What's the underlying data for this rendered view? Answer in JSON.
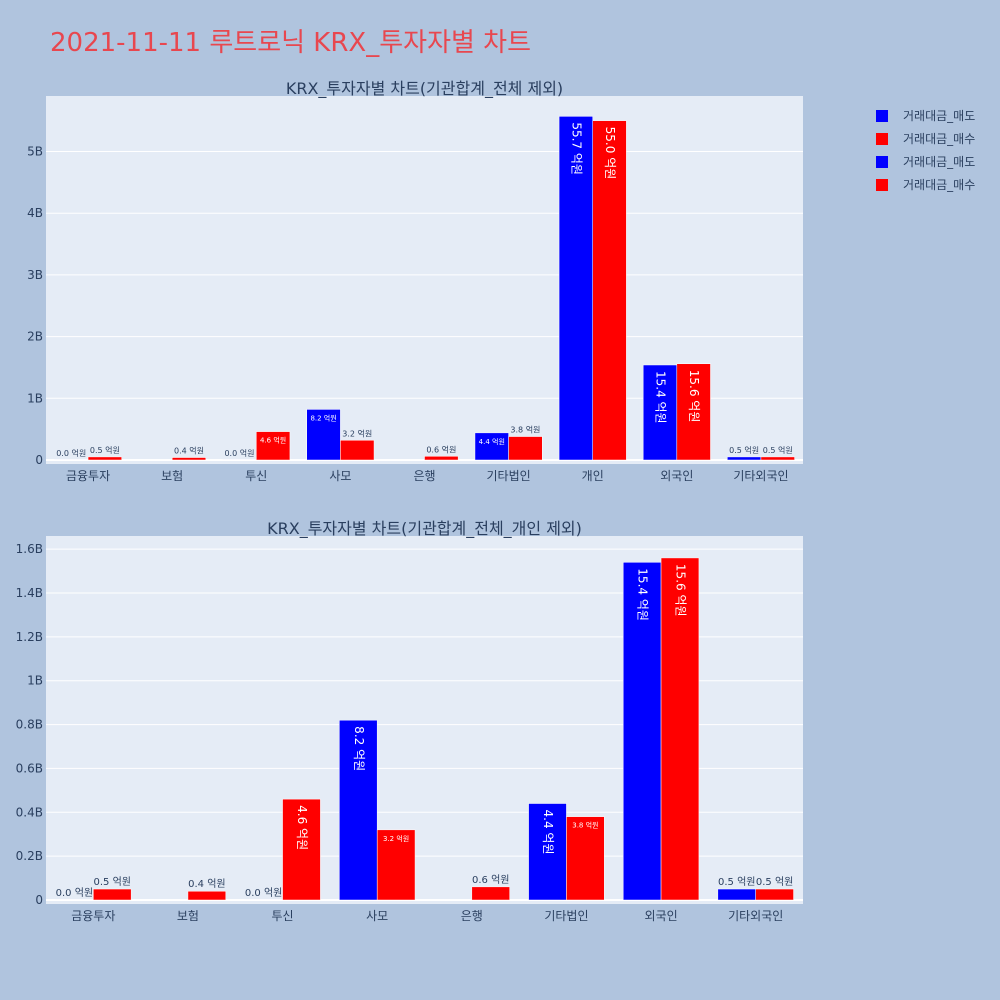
{
  "page": {
    "title": "2021-11-11 루트로닉 KRX_투자자별 차트"
  },
  "legend": {
    "items": [
      {
        "label": "거래대금_매도",
        "color": "#0000ff"
      },
      {
        "label": "거래대금_매수",
        "color": "#ff0000"
      },
      {
        "label": "거래대금_매도",
        "color": "#0000ff"
      },
      {
        "label": "거래대금_매수",
        "color": "#ff0000"
      }
    ]
  },
  "chart_data": [
    {
      "type": "bar",
      "title": "KRX_투자자별 차트(기관합계_전체 제외)",
      "categories": [
        "금융투자",
        "보험",
        "투신",
        "사모",
        "은행",
        "기타법인",
        "개인",
        "외국인",
        "기타외국인"
      ],
      "ylim": [
        0,
        5900000000
      ],
      "yticks": [
        0,
        1000000000,
        2000000000,
        3000000000,
        4000000000,
        5000000000
      ],
      "ytick_labels": [
        "0",
        "1B",
        "2B",
        "3B",
        "4B",
        "5B"
      ],
      "grid": true,
      "series": [
        {
          "name": "거래대금_매도",
          "color": "#0000ff",
          "values": [
            1000000,
            0,
            1000000,
            820000000,
            0,
            440000000,
            5570000000,
            1540000000,
            50000000
          ],
          "labels": [
            "0.0 억원",
            "",
            "0.0 억원",
            "8.2 억원",
            "",
            "4.4 억원",
            "55.7 억원",
            "15.4 억원",
            "0.5 억원"
          ]
        },
        {
          "name": "거래대금_매수",
          "color": "#ff0000",
          "values": [
            50000000,
            40000000,
            460000000,
            320000000,
            60000000,
            380000000,
            5500000000,
            1560000000,
            50000000
          ],
          "labels": [
            "0.5 억원",
            "0.4 억원",
            "4.6 억원",
            "3.2 억원",
            "0.6 억원",
            "3.8 억원",
            "55.0 억원",
            "15.6 억원",
            "0.5 억원"
          ]
        }
      ]
    },
    {
      "type": "bar",
      "title": "KRX_투자자별 차트(기관합계_전체_개인 제외)",
      "categories": [
        "금융투자",
        "보험",
        "투신",
        "사모",
        "은행",
        "기타법인",
        "외국인",
        "기타외국인"
      ],
      "ylim": [
        0,
        1660000000
      ],
      "yticks": [
        0,
        200000000,
        400000000,
        600000000,
        800000000,
        1000000000,
        1200000000,
        1400000000,
        1600000000
      ],
      "ytick_labels": [
        "0",
        "0.2B",
        "0.4B",
        "0.6B",
        "0.8B",
        "1B",
        "1.2B",
        "1.4B",
        "1.6B"
      ],
      "grid": true,
      "series": [
        {
          "name": "거래대금_매도",
          "color": "#0000ff",
          "values": [
            1000000,
            0,
            1000000,
            820000000,
            0,
            440000000,
            1540000000,
            50000000
          ],
          "labels": [
            "0.0 억원",
            "",
            "0.0 억원",
            "8.2 억원",
            "",
            "4.4 억원",
            "15.4 억원",
            "0.5 억원"
          ]
        },
        {
          "name": "거래대금_매수",
          "color": "#ff0000",
          "values": [
            50000000,
            40000000,
            460000000,
            320000000,
            60000000,
            380000000,
            1560000000,
            50000000
          ],
          "labels": [
            "0.5 억원",
            "0.4 억원",
            "4.6 억원",
            "3.2 억원",
            "0.6 억원",
            "3.8 억원",
            "15.6 억원",
            "0.5 억원"
          ]
        }
      ]
    }
  ]
}
